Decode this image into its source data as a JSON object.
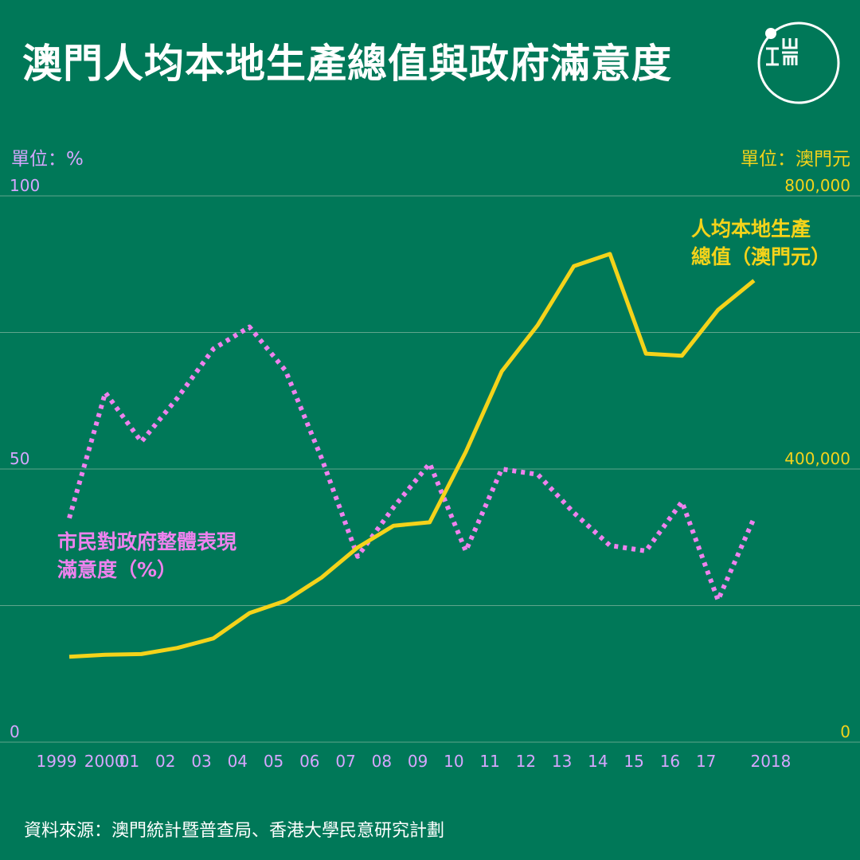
{
  "header": {
    "title": "澳門人均本地生產總值與政府滿意度"
  },
  "brand": {
    "logo_name": "initium-media-logo"
  },
  "units": {
    "left": "單位：%",
    "right": "單位：澳門元"
  },
  "source": "資料來源：澳門統計暨普查局、香港大學民意研究計劃",
  "colors": {
    "background": "#007858",
    "gdp": "#f4d31a",
    "satisfaction": "#ee82ee",
    "grid": "#5fa58c",
    "left_axis_text": "#d6a6ff",
    "right_axis_text": "#f4d31a"
  },
  "chart_data": {
    "type": "line",
    "categories": [
      "1999",
      "2000",
      "01",
      "02",
      "03",
      "04",
      "05",
      "06",
      "07",
      "08",
      "09",
      "10",
      "11",
      "12",
      "13",
      "14",
      "15",
      "16",
      "17",
      "2018"
    ],
    "series": [
      {
        "name": "市民對政府整體表現滿意度（%）",
        "axis": "left",
        "style": "dotted",
        "label_lines": [
          "市民對政府整體表現",
          "滿意度（%）"
        ],
        "values": [
          41,
          64,
          55,
          63,
          72,
          76,
          68,
          52,
          34,
          43,
          51,
          35,
          50,
          49,
          42,
          36,
          35,
          44,
          26,
          41
        ]
      },
      {
        "name": "人均本地生產總值（澳門元）",
        "axis": "right",
        "style": "solid",
        "label_lines": [
          "人均本地生產",
          "總值（澳門元）"
        ],
        "values": [
          125000,
          128000,
          129000,
          138000,
          152000,
          189000,
          207000,
          241000,
          285000,
          317000,
          322000,
          425000,
          543000,
          611000,
          697000,
          715000,
          569000,
          566000,
          633000,
          676000
        ]
      }
    ],
    "y_left": {
      "ylim": [
        0,
        100
      ],
      "ticks": [
        "0",
        "50",
        "100"
      ]
    },
    "y_right": {
      "ylim": [
        0,
        800000
      ],
      "ticks": [
        "0",
        "400,000",
        "800,000"
      ]
    },
    "grid": true
  }
}
